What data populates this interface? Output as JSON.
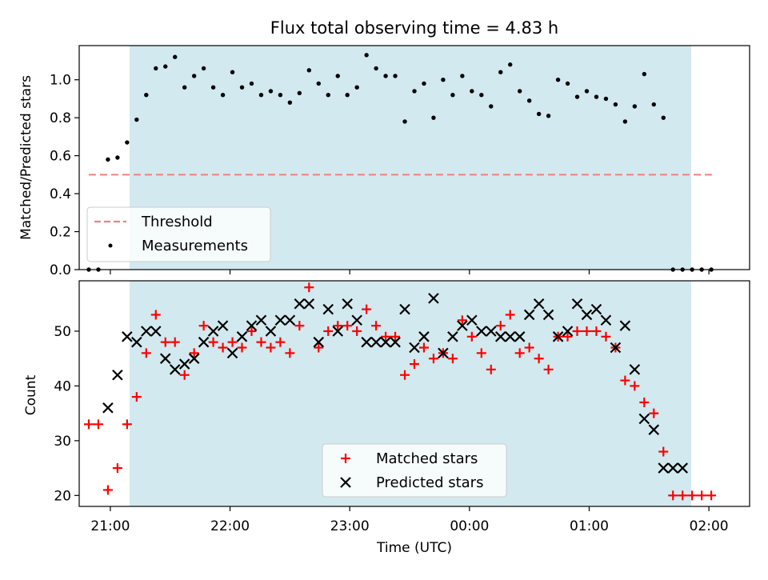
{
  "chart_data": [
    {
      "type": "scatter",
      "title": "Flux total observing time = 4.83 h",
      "ylabel": "Matched/Predicted stars",
      "ylim": [
        0,
        1.18
      ],
      "xlim": [
        20.74,
        2.34
      ],
      "yticks": [
        0.0,
        0.2,
        0.4,
        0.6,
        0.8,
        1.0
      ],
      "ytick_labels": [
        "0.0",
        "0.2",
        "0.4",
        "0.6",
        "0.8",
        "1.0"
      ],
      "shaded_span": [
        20.98,
        1.82
      ],
      "shaded_color": "#d2e9ef",
      "threshold": {
        "name": "Threshold",
        "y": 0.5,
        "x": [
          20.82,
          2.05
        ],
        "color": "#f08080"
      },
      "legend_position": "lower-left",
      "series": [
        {
          "name": "Measurements",
          "color": "#000000",
          "marker": "dot",
          "x": [
            20.82,
            20.9,
            20.98,
            21.06,
            21.14,
            21.22,
            21.3,
            21.38,
            21.46,
            21.54,
            21.62,
            21.7,
            21.78,
            21.86,
            21.94,
            22.02,
            22.1,
            22.18,
            22.26,
            22.34,
            22.42,
            22.5,
            22.58,
            22.66,
            22.74,
            22.82,
            22.9,
            22.98,
            23.06,
            23.14,
            23.22,
            23.3,
            23.38,
            23.46,
            23.54,
            23.62,
            23.7,
            23.78,
            23.86,
            23.94,
            0.02,
            0.1,
            0.18,
            0.26,
            0.34,
            0.42,
            0.5,
            0.58,
            0.66,
            0.74,
            0.82,
            0.9,
            0.98,
            1.06,
            1.14,
            1.22,
            1.3,
            1.38,
            1.46,
            1.54,
            1.62,
            1.7,
            1.78,
            1.86,
            1.94,
            2.02
          ],
          "y": [
            0.0,
            0.0,
            0.58,
            0.59,
            0.67,
            0.79,
            0.92,
            1.06,
            1.07,
            1.12,
            0.96,
            1.02,
            1.06,
            0.96,
            0.92,
            1.04,
            0.96,
            0.98,
            0.92,
            0.94,
            0.92,
            0.88,
            0.93,
            1.05,
            0.98,
            0.92,
            1.02,
            0.92,
            0.96,
            1.13,
            1.06,
            1.02,
            1.02,
            0.78,
            0.94,
            0.98,
            0.8,
            1.0,
            0.92,
            1.02,
            0.94,
            0.92,
            0.86,
            1.04,
            1.08,
            0.94,
            0.89,
            0.82,
            0.81,
            1.0,
            0.98,
            0.91,
            0.94,
            0.91,
            0.9,
            0.87,
            0.78,
            0.86,
            1.03,
            0.87,
            0.8,
            0.0,
            0.0,
            0.0,
            0.0,
            0.0
          ]
        }
      ]
    },
    {
      "type": "scatter",
      "ylabel": "Count",
      "xlabel": "Time (UTC)",
      "ylim": [
        18,
        59.2
      ],
      "xlim": [
        20.74,
        2.34
      ],
      "yticks": [
        20,
        30,
        40,
        50
      ],
      "ytick_labels": [
        "20",
        "30",
        "40",
        "50"
      ],
      "xticks": [
        21,
        22,
        23,
        0,
        1,
        2
      ],
      "xtick_labels": [
        "21:00",
        "22:00",
        "23:00",
        "00:00",
        "01:00",
        "02:00"
      ],
      "shaded_span": [
        20.98,
        1.82
      ],
      "shaded_color": "#d2e9ef",
      "legend_position": "lower-center",
      "series": [
        {
          "name": "Matched stars",
          "color": "#ff0000",
          "marker": "plus",
          "x": [
            20.82,
            20.9,
            20.98,
            21.06,
            21.14,
            21.22,
            21.3,
            21.38,
            21.46,
            21.54,
            21.62,
            21.7,
            21.78,
            21.86,
            21.94,
            22.02,
            22.1,
            22.18,
            22.26,
            22.34,
            22.42,
            22.5,
            22.58,
            22.66,
            22.74,
            22.82,
            22.9,
            22.98,
            23.06,
            23.14,
            23.22,
            23.3,
            23.38,
            23.46,
            23.54,
            23.62,
            23.7,
            23.78,
            23.86,
            23.94,
            0.02,
            0.1,
            0.18,
            0.26,
            0.34,
            0.42,
            0.5,
            0.58,
            0.66,
            0.74,
            0.82,
            0.9,
            0.98,
            1.06,
            1.14,
            1.22,
            1.3,
            1.38,
            1.46,
            1.54,
            1.62,
            1.7,
            1.78,
            1.86,
            1.94,
            2.02
          ],
          "y": [
            33,
            33,
            21,
            25,
            33,
            38,
            46,
            53,
            48,
            48,
            42,
            46,
            51,
            48,
            47,
            48,
            47,
            50,
            48,
            47,
            48,
            46,
            51,
            58,
            47,
            50,
            51,
            51,
            50,
            54,
            51,
            49,
            49,
            42,
            44,
            47,
            45,
            46,
            45,
            52,
            49,
            46,
            43,
            51,
            53,
            46,
            47,
            45,
            43,
            49,
            49,
            50,
            50,
            50,
            49,
            47,
            41,
            40,
            37,
            35,
            28,
            20,
            20,
            20,
            20,
            20
          ]
        },
        {
          "name": "Predicted stars",
          "color": "#000000",
          "marker": "x",
          "x": [
            20.98,
            21.06,
            21.14,
            21.22,
            21.3,
            21.38,
            21.46,
            21.54,
            21.62,
            21.7,
            21.78,
            21.86,
            21.94,
            22.02,
            22.1,
            22.18,
            22.26,
            22.34,
            22.42,
            22.5,
            22.58,
            22.66,
            22.74,
            22.82,
            22.9,
            22.98,
            23.06,
            23.14,
            23.22,
            23.3,
            23.38,
            23.46,
            23.54,
            23.62,
            23.7,
            23.78,
            23.86,
            23.94,
            0.02,
            0.1,
            0.18,
            0.26,
            0.34,
            0.42,
            0.5,
            0.58,
            0.66,
            0.74,
            0.82,
            0.9,
            0.98,
            1.06,
            1.14,
            1.22,
            1.3,
            1.38,
            1.46,
            1.54,
            1.62,
            1.7,
            1.78
          ],
          "y": [
            36,
            42,
            49,
            48,
            50,
            50,
            45,
            43,
            44,
            45,
            48,
            50,
            51,
            46,
            49,
            51,
            52,
            50,
            52,
            52,
            55,
            55,
            48,
            54,
            50,
            55,
            52,
            48,
            48,
            48,
            48,
            54,
            47,
            49,
            56,
            46,
            49,
            51,
            52,
            50,
            50,
            49,
            49,
            49,
            53,
            55,
            53,
            49,
            50,
            55,
            53,
            54,
            52,
            47,
            51,
            43,
            34,
            32,
            25,
            25,
            25
          ]
        }
      ]
    }
  ]
}
